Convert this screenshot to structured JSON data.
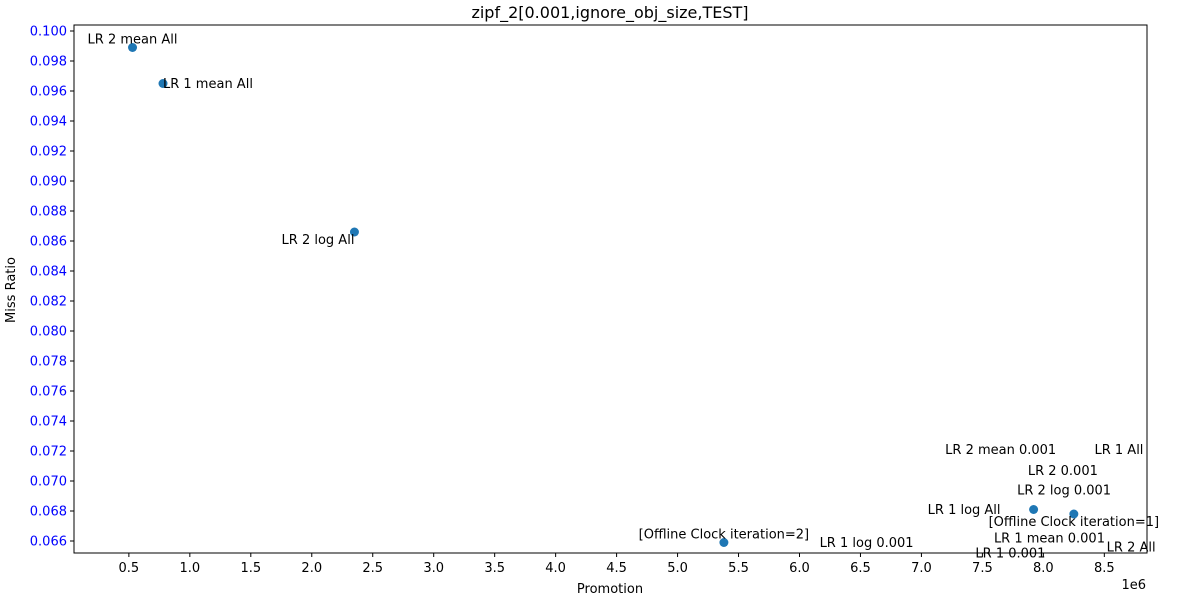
{
  "chart_data": {
    "type": "scatter",
    "title": "zipf_2[0.001,ignore_obj_size,TEST]",
    "xlabel": "Promotion",
    "ylabel": "Miss Ratio",
    "x_offset_label": "1e6",
    "xlim": [
      0.05,
      8.85
    ],
    "ylim": [
      0.0652,
      0.1004
    ],
    "xticks": [
      0.5,
      1.0,
      1.5,
      2.0,
      2.5,
      3.0,
      3.5,
      4.0,
      4.5,
      5.0,
      5.5,
      6.0,
      6.5,
      7.0,
      7.5,
      8.0,
      8.5
    ],
    "xtick_labels": [
      "0.5",
      "1.0",
      "1.5",
      "2.0",
      "2.5",
      "3.0",
      "3.5",
      "4.0",
      "4.5",
      "5.0",
      "5.5",
      "6.0",
      "6.5",
      "7.0",
      "7.5",
      "8.0",
      "8.5"
    ],
    "yticks": [
      0.066,
      0.068,
      0.07,
      0.072,
      0.074,
      0.076,
      0.078,
      0.08,
      0.082,
      0.084,
      0.086,
      0.088,
      0.09,
      0.092,
      0.094,
      0.096,
      0.098,
      0.1
    ],
    "ytick_labels": [
      "0.066",
      "0.068",
      "0.070",
      "0.072",
      "0.074",
      "0.076",
      "0.078",
      "0.080",
      "0.082",
      "0.084",
      "0.086",
      "0.088",
      "0.090",
      "0.092",
      "0.094",
      "0.096",
      "0.098",
      "0.100"
    ],
    "ytick_color": "#0000ff",
    "marker_color": "#1f77b4",
    "grid": false,
    "points": [
      {
        "x": 0.53,
        "y": 0.0989
      },
      {
        "x": 0.78,
        "y": 0.0965
      },
      {
        "x": 2.35,
        "y": 0.0866
      },
      {
        "x": 5.38,
        "y": 0.0659
      },
      {
        "x": 7.92,
        "y": 0.0681
      },
      {
        "x": 8.25,
        "y": 0.0678
      }
    ],
    "annotations": [
      {
        "text": "LR 2 mean All",
        "x": 0.53,
        "y": 0.0989,
        "anchor": "middle",
        "baseline": "below"
      },
      {
        "text": "LR 1 mean All",
        "x": 0.78,
        "y": 0.0965,
        "anchor": "start",
        "baseline": "middle"
      },
      {
        "text": "LR 2 log All",
        "x": 2.35,
        "y": 0.0866,
        "anchor": "end",
        "baseline": "above"
      },
      {
        "text": "[Offline Clock iteration=2]",
        "x": 5.38,
        "y": 0.0659,
        "anchor": "middle",
        "baseline": "below"
      },
      {
        "text": "LR 1 log 0.001",
        "x": 6.55,
        "y": 0.0659,
        "anchor": "middle",
        "baseline": "middle"
      },
      {
        "text": "LR 1 log All",
        "x": 7.35,
        "y": 0.0681,
        "anchor": "middle",
        "baseline": "middle"
      },
      {
        "text": "LR 2 mean 0.001",
        "x": 7.65,
        "y": 0.0721,
        "anchor": "middle",
        "baseline": "middle"
      },
      {
        "text": "LR 1 All",
        "x": 8.62,
        "y": 0.0721,
        "anchor": "middle",
        "baseline": "middle"
      },
      {
        "text": "LR 2 0.001",
        "x": 8.16,
        "y": 0.0707,
        "anchor": "middle",
        "baseline": "middle"
      },
      {
        "text": "LR 2 log 0.001",
        "x": 8.17,
        "y": 0.0694,
        "anchor": "middle",
        "baseline": "middle"
      },
      {
        "text": "[Offline Clock iteration=1]",
        "x": 8.25,
        "y": 0.0678,
        "anchor": "middle",
        "baseline": "above"
      },
      {
        "text": "LR 1 mean 0.001",
        "x": 8.05,
        "y": 0.0662,
        "anchor": "middle",
        "baseline": "middle"
      },
      {
        "text": "LR 2 All",
        "x": 8.72,
        "y": 0.0656,
        "anchor": "middle",
        "baseline": "middle"
      },
      {
        "text": "LR 1 0.001",
        "x": 7.73,
        "y": 0.0652,
        "anchor": "middle",
        "baseline": "middle"
      }
    ]
  }
}
